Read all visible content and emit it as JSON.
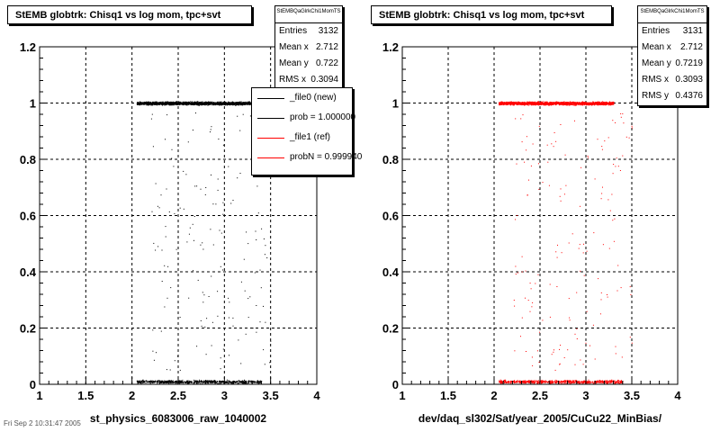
{
  "panels": [
    {
      "title": "StEMB globtrk: Chisq1 vs log mom, tpc+svt",
      "stats_name": "StEMBQaGlrkChi1MomTS",
      "stats": [
        {
          "label": "Entries",
          "value": "3132"
        },
        {
          "label": "Mean x",
          "value": "2.712"
        },
        {
          "label": "Mean y",
          "value": "0.722"
        },
        {
          "label": "RMS x",
          "value": "0.3094"
        }
      ],
      "xlabel": "st_physics_6083006_raw_1040002",
      "color": "#000000"
    },
    {
      "title": "StEMB globtrk: Chisq1 vs log mom, tpc+svt",
      "stats_name": "StEMBQaGlrkChi1MomTS",
      "stats": [
        {
          "label": "Entries",
          "value": "3131"
        },
        {
          "label": "Mean x",
          "value": "2.712"
        },
        {
          "label": "Mean y",
          "value": "0.7219"
        },
        {
          "label": "RMS x",
          "value": "0.3093"
        },
        {
          "label": "RMS y",
          "value": "0.4376"
        }
      ],
      "xlabel": "dev/daq_sl302/Sat/year_2005/CuCu22_MinBias/",
      "color": "#ff0000"
    }
  ],
  "legend": [
    {
      "label": "_file0 (new)",
      "color": "#000000"
    },
    {
      "label": "prob = 1.000000",
      "color": "#000000"
    },
    {
      "label": "_file1 (ref)",
      "color": "#ff0000"
    },
    {
      "label": "probN = 0.999940",
      "color": "#ff0000"
    }
  ],
  "footer": "Fri Sep 2 10:31:47 2005",
  "chart_data": [
    {
      "type": "scatter",
      "title": "StEMB globtrk: Chisq1 vs log mom, tpc+svt",
      "xlabel": "st_physics_6083006_raw_1040002",
      "ylabel": "",
      "xlim": [
        1,
        4
      ],
      "ylim": [
        0,
        1.2
      ],
      "xticks": [
        "1",
        "1.5",
        "2",
        "2.5",
        "3",
        "3.5",
        "4"
      ],
      "yticks": [
        "0",
        "0.2",
        "0.4",
        "0.6",
        "0.8",
        "1",
        "1.2"
      ],
      "grid": true,
      "series": [
        {
          "name": "_file0 (new)",
          "color": "#000000",
          "bands": [
            {
              "y": 1.0,
              "x_range": [
                2.05,
                3.3
              ],
              "fraction": 0.7
            },
            {
              "y": 0.01,
              "x_range": [
                2.05,
                3.4
              ],
              "fraction": 0.25
            },
            {
              "y_range": [
                0.05,
                0.97
              ],
              "x_range": [
                2.2,
                3.5
              ],
              "fraction": 0.05
            }
          ]
        }
      ],
      "entries": 3132
    },
    {
      "type": "scatter",
      "title": "StEMB globtrk: Chisq1 vs log mom, tpc+svt",
      "xlabel": "dev/daq_sl302/Sat/year_2005/CuCu22_MinBias/",
      "ylabel": "",
      "xlim": [
        1,
        4
      ],
      "ylim": [
        0,
        1.2
      ],
      "xticks": [
        "1",
        "1.5",
        "2",
        "2.5",
        "3",
        "3.5",
        "4"
      ],
      "yticks": [
        "0",
        "0.2",
        "0.4",
        "0.6",
        "0.8",
        "1",
        "1.2"
      ],
      "grid": true,
      "series": [
        {
          "name": "_file1 (ref)",
          "color": "#ff0000",
          "bands": [
            {
              "y": 1.0,
              "x_range": [
                2.05,
                3.3
              ],
              "fraction": 0.7
            },
            {
              "y": 0.01,
              "x_range": [
                2.05,
                3.4
              ],
              "fraction": 0.25
            },
            {
              "y_range": [
                0.05,
                0.97
              ],
              "x_range": [
                2.2,
                3.5
              ],
              "fraction": 0.05
            }
          ]
        }
      ],
      "entries": 3131
    }
  ]
}
